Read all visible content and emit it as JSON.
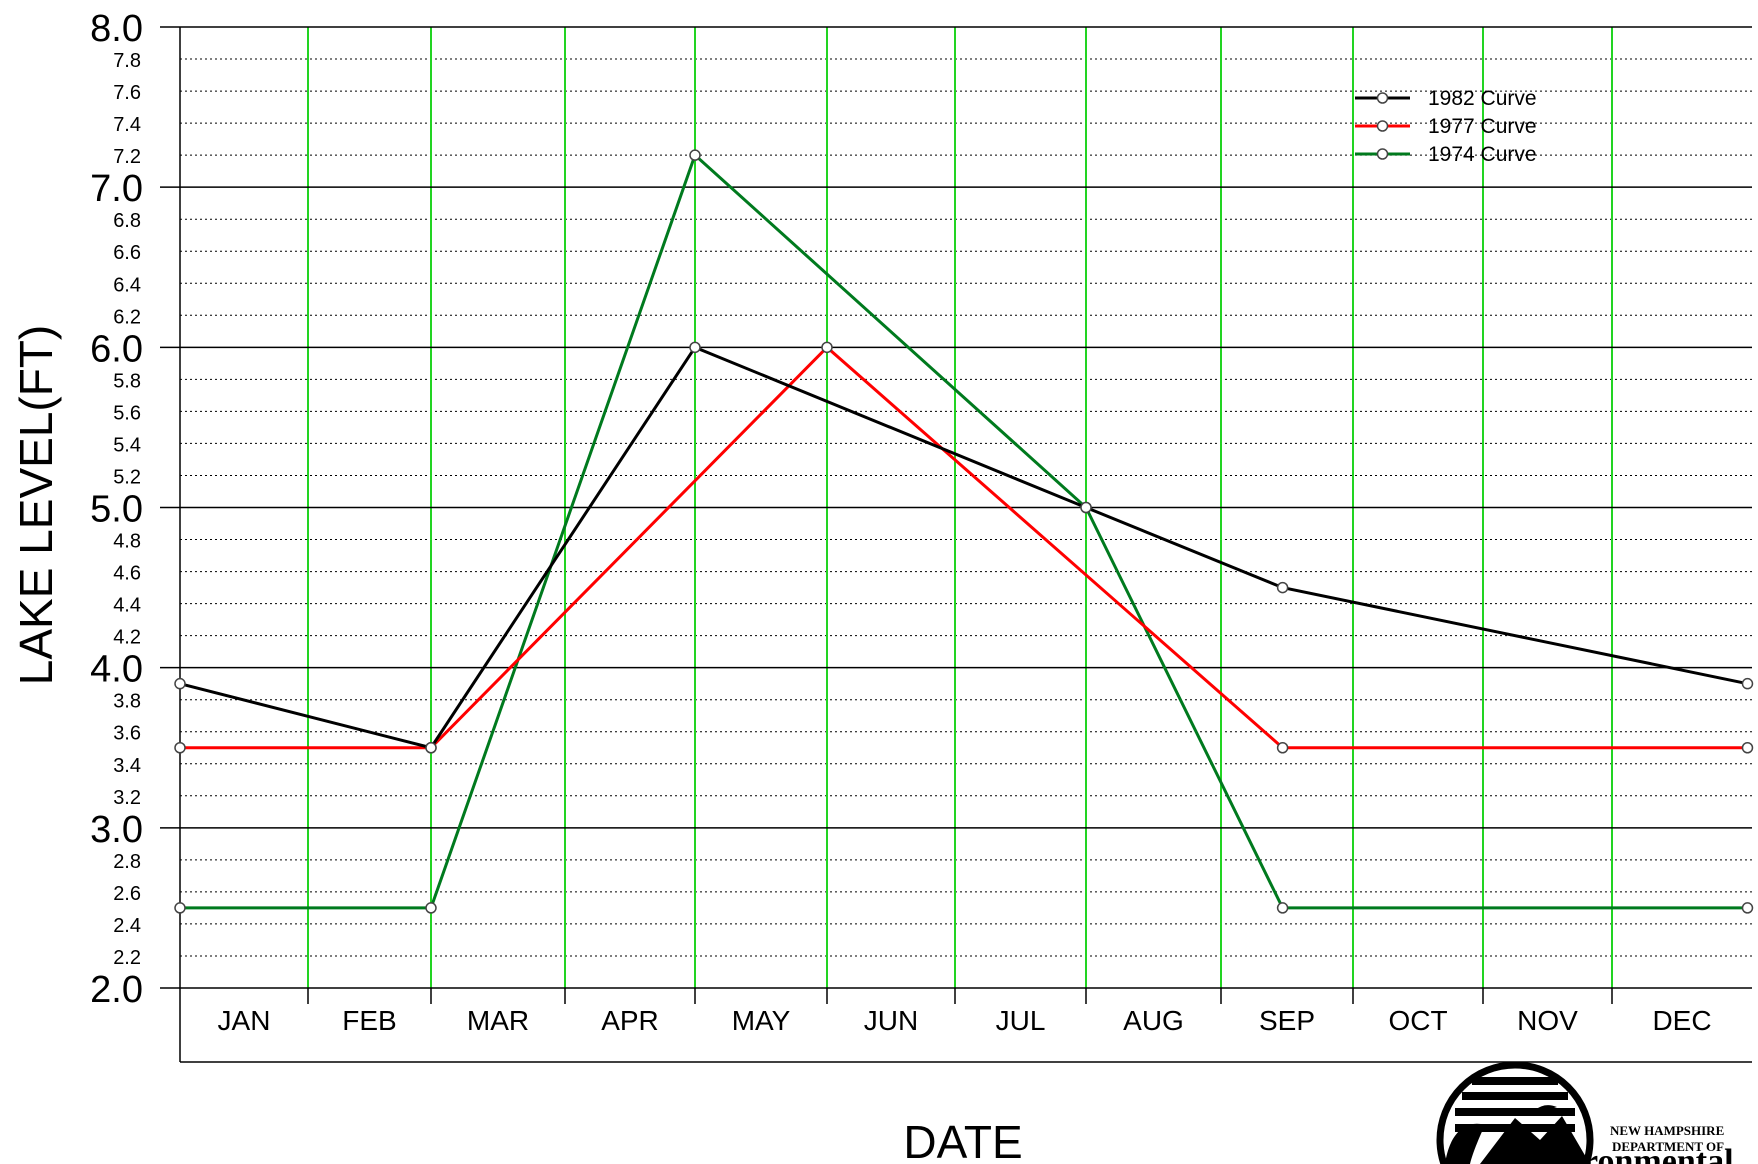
{
  "chart_data": {
    "type": "line",
    "xlabel": "DATE",
    "ylabel": "LAKE LEVEL(FT)",
    "ylim": [
      2.0,
      8.0
    ],
    "y_major_ticks": [
      "2.0",
      "3.0",
      "4.0",
      "5.0",
      "6.0",
      "7.0",
      "8.0"
    ],
    "y_minor_ticks": [
      "2.2",
      "2.4",
      "2.6",
      "2.8",
      "3.2",
      "3.4",
      "3.6",
      "3.8",
      "4.2",
      "4.4",
      "4.6",
      "4.8",
      "5.2",
      "5.4",
      "5.6",
      "5.8",
      "6.2",
      "6.4",
      "6.6",
      "6.8",
      "7.2",
      "7.4",
      "7.6",
      "7.8"
    ],
    "categories": [
      "JAN",
      "FEB",
      "MAR",
      "APR",
      "MAY",
      "JUN",
      "JUL",
      "AUG",
      "SEP",
      "OCT",
      "NOV",
      "DEC"
    ],
    "grid": true,
    "legend_position": "top-right",
    "series": [
      {
        "name": "1982 Curve",
        "color": "#000000",
        "x": [
          "Jan 1",
          "Mar 1",
          "May 1",
          "Aug 1",
          "Sep 15",
          "Dec 31"
        ],
        "y": [
          3.9,
          3.5,
          6.0,
          5.0,
          4.5,
          3.9
        ]
      },
      {
        "name": "1977 Curve",
        "color": "#ff0000",
        "x": [
          "Jan 1",
          "Mar 1",
          "Jun 1",
          "Sep 15",
          "Dec 31"
        ],
        "y": [
          3.5,
          3.5,
          6.0,
          3.5,
          3.5
        ]
      },
      {
        "name": "1974 Curve",
        "color": "#007a1e",
        "x": [
          "Jan 1",
          "Mar 1",
          "May 1",
          "Aug 1",
          "Sep 15",
          "Dec 31"
        ],
        "y": [
          2.5,
          2.5,
          7.2,
          5.0,
          2.5,
          2.5
        ]
      }
    ]
  },
  "logo": {
    "name": "nh-des-logo-icon",
    "text": "NEW HAMPSHIRE DEPARTMENT OF Environmental"
  }
}
